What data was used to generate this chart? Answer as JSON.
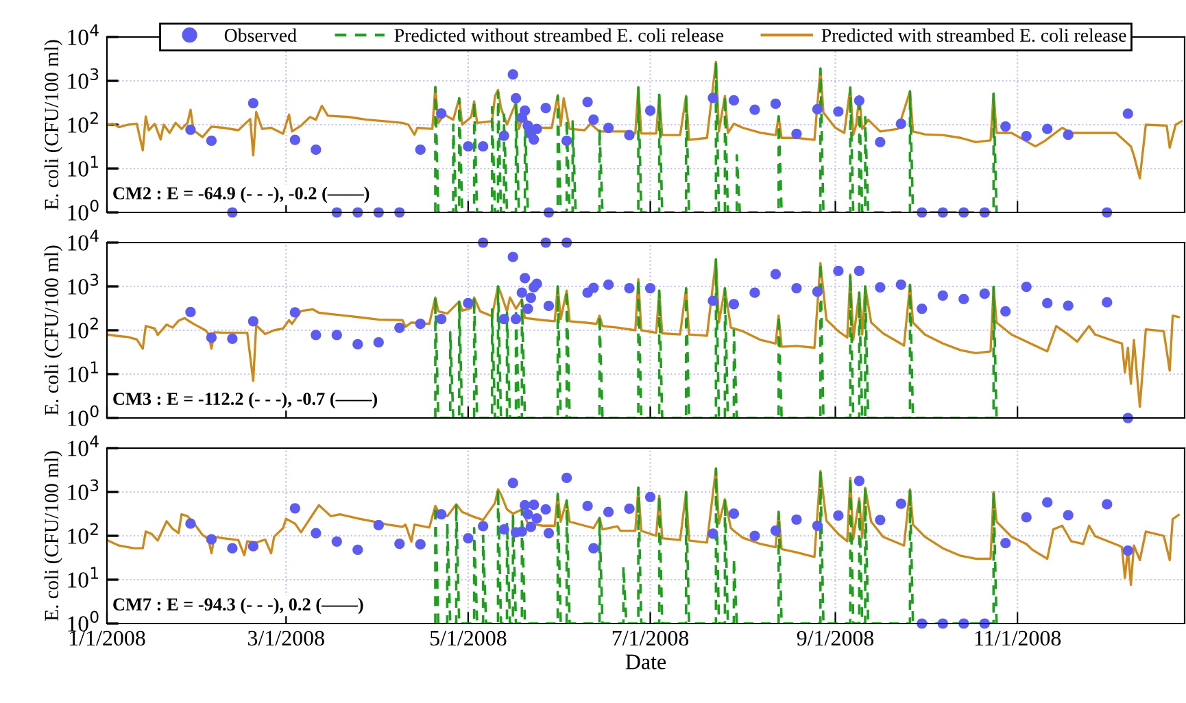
{
  "chart_data": [
    {
      "type": "line",
      "ylabel": "E. coli (CFU/100 ml)",
      "log": "y",
      "grid": true,
      "legend": "top",
      "tick_labels": "y",
      "annotations": [
        "CM2 : E = -64.9 (- - -), -0.2 (——)"
      ],
      "xlim": [
        "2008-01-01",
        "2008-12-27"
      ],
      "xticks": [
        {
          "value": "2008-01-01",
          "label": null
        },
        {
          "value": "2008-03-01",
          "label": null
        },
        {
          "value": "2008-05-01",
          "label": null
        },
        {
          "value": "2008-07-01",
          "label": null
        },
        {
          "value": "2008-09-01",
          "label": null
        },
        {
          "value": "2008-11-01",
          "label": null
        }
      ],
      "ylim": [
        1,
        10000
      ],
      "yticks": [
        {
          "value": 1,
          "label": "10$^{0}$"
        },
        {
          "value": 10,
          "label": "10$^{1}$"
        },
        {
          "value": 100,
          "label": "10$^{2}$"
        },
        {
          "value": 1000,
          "label": "10$^{3}$"
        },
        {
          "value": 10000,
          "label": "10$^{4}$"
        }
      ],
      "series": [
        {
          "name": "Predicted with streambed E. coli release",
          "line_style": "solid",
          "color": "#cc8a1c",
          "x": [
            "2008-01-01",
            "2008-01-03",
            "2008-01-05",
            "2008-01-08",
            "2008-01-11",
            "2008-01-13",
            "2008-01-14",
            "2008-01-15",
            "2008-01-17",
            "2008-01-19",
            "2008-01-20",
            "2008-01-22",
            "2008-01-24",
            "2008-01-26",
            "2008-01-28",
            "2008-01-29",
            "2008-01-30",
            "2008-02-02",
            "2008-02-05",
            "2008-02-09",
            "2008-02-14",
            "2008-02-18",
            "2008-02-19",
            "2008-02-20",
            "2008-02-22",
            "2008-02-25",
            "2008-02-29",
            "2008-03-02",
            "2008-03-03",
            "2008-03-06",
            "2008-03-09",
            "2008-03-11",
            "2008-03-13",
            "2008-03-15",
            "2008-03-22",
            "2008-03-28",
            "2008-04-03",
            "2008-04-09",
            "2008-04-11",
            "2008-04-13",
            "2008-04-14",
            "2008-04-19",
            "2008-04-20",
            "2008-04-21",
            "2008-04-23",
            "2008-04-26",
            "2008-04-28",
            "2008-04-29",
            "2008-05-02",
            "2008-05-03",
            "2008-05-04",
            "2008-05-09",
            "2008-05-10",
            "2008-05-11",
            "2008-05-12",
            "2008-05-14",
            "2008-05-17",
            "2008-05-18",
            "2008-05-19",
            "2008-05-20",
            "2008-05-21",
            "2008-05-26",
            "2008-05-29",
            "2008-05-31",
            "2008-06-01",
            "2008-06-02",
            "2008-06-04",
            "2008-06-09",
            "2008-06-11",
            "2008-06-14",
            "2008-06-23",
            "2008-06-26",
            "2008-06-27",
            "2008-06-28",
            "2008-07-03",
            "2008-07-04",
            "2008-07-05",
            "2008-07-11",
            "2008-07-13",
            "2008-07-14",
            "2008-07-20",
            "2008-07-23",
            "2008-07-24",
            "2008-07-26",
            "2008-07-27",
            "2008-07-29",
            "2008-08-01",
            "2008-08-07",
            "2008-08-12",
            "2008-08-13",
            "2008-08-14",
            "2008-08-19",
            "2008-08-25",
            "2008-08-27",
            "2008-08-28",
            "2008-09-01",
            "2008-09-04",
            "2008-09-06",
            "2008-09-07",
            "2008-09-08",
            "2008-09-09",
            "2008-09-10",
            "2008-09-12",
            "2008-09-16",
            "2008-09-22",
            "2008-09-26",
            "2008-09-27",
            "2008-10-01",
            "2008-10-07",
            "2008-10-13",
            "2008-10-18",
            "2008-10-23",
            "2008-10-24",
            "2008-10-25",
            "2008-10-30",
            "2008-11-04",
            "2008-11-07",
            "2008-11-10",
            "2008-11-16",
            "2008-11-19",
            "2008-11-25",
            "2008-12-04",
            "2008-12-09",
            "2008-12-10",
            "2008-12-12",
            "2008-12-14",
            "2008-12-21",
            "2008-12-22",
            "2008-12-24",
            "2008-12-26"
          ],
          "values": [
            100,
            105,
            88,
            100,
            105,
            26,
            155,
            75,
            105,
            46,
            100,
            65,
            110,
            80,
            110,
            220,
            75,
            52,
            90,
            85,
            75,
            135,
            20,
            195,
            80,
            85,
            62,
            170,
            70,
            95,
            150,
            130,
            270,
            160,
            150,
            130,
            120,
            110,
            100,
            59,
            85,
            80,
            720,
            110,
            170,
            130,
            400,
            100,
            150,
            340,
            110,
            120,
            450,
            620,
            240,
            100,
            320,
            80,
            130,
            200,
            90,
            85,
            85,
            470,
            95,
            400,
            80,
            75,
            105,
            70,
            70,
            63,
            720,
            63,
            63,
            480,
            58,
            58,
            455,
            45,
            50,
            2700,
            70,
            450,
            65,
            105,
            85,
            65,
            58,
            155,
            50,
            50,
            45,
            1900,
            190,
            85,
            65,
            700,
            58,
            100,
            455,
            80,
            130,
            70,
            80,
            575,
            70,
            60,
            58,
            50,
            40,
            44,
            510,
            65,
            65,
            42,
            32,
            42,
            85,
            65,
            65,
            65,
            32,
            20,
            6,
            100,
            95,
            30,
            100,
            120
          ]
        },
        {
          "name": "Predicted without streambed E. coli release",
          "line_style": "dashed",
          "color": "#1f9e1f",
          "x": [
            "2008-04-20",
            "2008-04-20",
            "2008-04-21",
            "2008-04-26",
            "2008-04-26",
            "2008-04-27",
            "2008-04-28",
            "2008-04-28",
            "2008-04-29",
            "2008-05-03",
            "2008-05-03",
            "2008-05-04",
            "2008-05-09",
            "2008-05-09",
            "2008-05-10",
            "2008-05-11",
            "2008-05-11",
            "2008-05-12",
            "2008-05-13",
            "2008-05-13",
            "2008-05-14",
            "2008-05-17",
            "2008-05-17",
            "2008-05-18",
            "2008-05-20",
            "2008-05-20",
            "2008-05-21",
            "2008-05-31",
            "2008-05-31",
            "2008-06-01",
            "2008-06-03",
            "2008-06-03",
            "2008-06-04",
            "2008-06-05",
            "2008-06-05",
            "2008-06-06",
            "2008-06-14",
            "2008-06-14",
            "2008-06-15",
            "2008-06-27",
            "2008-06-27",
            "2008-06-28",
            "2008-07-04",
            "2008-07-04",
            "2008-07-05",
            "2008-07-13",
            "2008-07-13",
            "2008-07-14",
            "2008-07-23",
            "2008-07-23",
            "2008-07-24",
            "2008-07-26",
            "2008-07-26",
            "2008-07-27",
            "2008-07-30",
            "2008-07-30",
            "2008-07-31",
            "2008-08-13",
            "2008-08-13",
            "2008-08-14",
            "2008-08-27",
            "2008-08-27",
            "2008-08-28",
            "2008-09-06",
            "2008-09-06",
            "2008-09-07",
            "2008-09-09",
            "2008-09-09",
            "2008-09-10",
            "2008-09-11",
            "2008-09-11",
            "2008-09-12",
            "2008-09-26",
            "2008-09-26",
            "2008-09-27",
            "2008-10-24",
            "2008-10-24",
            "2008-10-25"
          ],
          "values": [
            1,
            720,
            1,
            1,
            100,
            1,
            1,
            400,
            1,
            1,
            330,
            1,
            1,
            250,
            1,
            1,
            550,
            1,
            1,
            170,
            1,
            1,
            300,
            1,
            1,
            200,
            1,
            1,
            450,
            1,
            1,
            130,
            1,
            1,
            120,
            1,
            1,
            80,
            1,
            1,
            700,
            1,
            1,
            480,
            1,
            1,
            455,
            1,
            1,
            2700,
            1,
            1,
            450,
            1,
            1,
            20,
            1,
            1,
            155,
            1,
            1,
            1900,
            1,
            1,
            700,
            1,
            1,
            455,
            1,
            1,
            150,
            1,
            1,
            575,
            1,
            1,
            510,
            1
          ]
        },
        {
          "name": "Observed",
          "type": "scatter",
          "marker": "circle",
          "color": "#5c5cf2",
          "x": [
            "2008-01-29",
            "2008-02-05",
            "2008-02-12",
            "2008-02-19",
            "2008-03-04",
            "2008-03-11",
            "2008-03-18",
            "2008-03-25",
            "2008-04-01",
            "2008-04-08",
            "2008-04-15",
            "2008-04-22",
            "2008-05-01",
            "2008-05-06",
            "2008-05-13",
            "2008-05-16",
            "2008-05-17",
            "2008-05-19",
            "2008-05-20",
            "2008-05-21",
            "2008-05-22",
            "2008-05-23",
            "2008-05-24",
            "2008-05-27",
            "2008-05-28",
            "2008-06-03",
            "2008-06-10",
            "2008-06-12",
            "2008-06-17",
            "2008-06-24",
            "2008-07-01",
            "2008-07-22",
            "2008-07-29",
            "2008-08-05",
            "2008-08-12",
            "2008-08-19",
            "2008-08-26",
            "2008-09-02",
            "2008-09-09",
            "2008-09-16",
            "2008-09-23",
            "2008-09-30",
            "2008-10-07",
            "2008-10-14",
            "2008-10-21",
            "2008-10-28",
            "2008-11-04",
            "2008-11-11",
            "2008-11-18",
            "2008-12-01",
            "2008-12-08"
          ],
          "values": [
            77,
            43,
            1,
            310,
            45,
            27,
            1,
            1,
            1,
            1,
            27,
            180,
            32,
            32,
            56,
            1400,
            400,
            145,
            210,
            95,
            62,
            46,
            80,
            240,
            1,
            43,
            330,
            130,
            85,
            58,
            210,
            410,
            360,
            220,
            300,
            62,
            225,
            200,
            355,
            40,
            105,
            1,
            1,
            1,
            1,
            91,
            55,
            80,
            59,
            1,
            178
          ]
        }
      ]
    },
    {
      "type": "line",
      "ylabel": "E. coli (CFU/100 ml)",
      "log": "y",
      "grid": true,
      "tick_labels": "y",
      "annotations": [
        "CM3 : E = -112.2 (- - -), -0.7 (——)"
      ],
      "xlim": [
        "2008-01-01",
        "2008-12-27"
      ],
      "xticks": [
        {
          "value": "2008-01-01",
          "label": null
        },
        {
          "value": "2008-03-01",
          "label": null
        },
        {
          "value": "2008-05-01",
          "label": null
        },
        {
          "value": "2008-07-01",
          "label": null
        },
        {
          "value": "2008-09-01",
          "label": null
        },
        {
          "value": "2008-11-01",
          "label": null
        }
      ],
      "ylim": [
        1,
        10000
      ],
      "yticks": [
        {
          "value": 1,
          "label": "10$^{0}$"
        },
        {
          "value": 10,
          "label": "10$^{1}$"
        },
        {
          "value": 100,
          "label": "10$^{2}$"
        },
        {
          "value": 1000,
          "label": "10$^{3}$"
        },
        {
          "value": 10000,
          "label": "10$^{4}$"
        }
      ],
      "series": [
        {
          "line_style": "solid",
          "color": "#cc8a1c",
          "x": [
            "2008-01-01",
            "2008-01-04",
            "2008-01-08",
            "2008-01-11",
            "2008-01-13",
            "2008-01-14",
            "2008-01-17",
            "2008-01-18",
            "2008-01-21",
            "2008-01-23",
            "2008-01-25",
            "2008-01-27",
            "2008-01-28",
            "2008-01-30",
            "2008-02-03",
            "2008-02-04",
            "2008-02-05",
            "2008-02-06",
            "2008-02-09",
            "2008-02-14",
            "2008-02-17",
            "2008-02-19",
            "2008-02-20",
            "2008-02-23",
            "2008-02-26",
            "2008-02-29",
            "2008-03-02",
            "2008-03-03",
            "2008-03-06",
            "2008-03-10",
            "2008-03-12",
            "2008-03-17",
            "2008-03-25",
            "2008-04-01",
            "2008-04-09",
            "2008-04-10",
            "2008-04-12",
            "2008-04-18",
            "2008-04-20",
            "2008-04-21",
            "2008-04-24",
            "2008-04-28",
            "2008-04-29",
            "2008-05-02",
            "2008-05-03",
            "2008-05-05",
            "2008-05-09",
            "2008-05-11",
            "2008-05-12",
            "2008-05-14",
            "2008-05-15",
            "2008-05-17",
            "2008-05-19",
            "2008-05-20",
            "2008-05-26",
            "2008-05-30",
            "2008-05-31",
            "2008-06-01",
            "2008-06-03",
            "2008-06-04",
            "2008-06-09",
            "2008-06-13",
            "2008-06-14",
            "2008-06-15",
            "2008-06-20",
            "2008-06-26",
            "2008-06-27",
            "2008-06-28",
            "2008-07-03",
            "2008-07-04",
            "2008-07-05",
            "2008-07-11",
            "2008-07-13",
            "2008-07-14",
            "2008-07-20",
            "2008-07-23",
            "2008-07-24",
            "2008-07-26",
            "2008-07-28",
            "2008-07-29",
            "2008-08-01",
            "2008-08-07",
            "2008-08-12",
            "2008-08-13",
            "2008-08-14",
            "2008-08-19",
            "2008-08-25",
            "2008-08-27",
            "2008-08-29",
            "2008-09-02",
            "2008-09-05",
            "2008-09-06",
            "2008-09-07",
            "2008-09-09",
            "2008-09-10",
            "2008-09-11",
            "2008-09-13",
            "2008-09-17",
            "2008-09-24",
            "2008-09-26",
            "2008-09-27",
            "2008-10-01",
            "2008-10-07",
            "2008-10-13",
            "2008-10-18",
            "2008-10-23",
            "2008-10-24",
            "2008-10-25",
            "2008-10-30",
            "2008-11-04",
            "2008-11-11",
            "2008-11-14",
            "2008-11-18",
            "2008-11-21",
            "2008-11-25",
            "2008-11-27",
            "2008-12-04",
            "2008-12-06",
            "2008-12-07",
            "2008-12-08",
            "2008-12-09",
            "2008-12-10",
            "2008-12-12",
            "2008-12-14",
            "2008-12-20",
            "2008-12-22",
            "2008-12-23",
            "2008-12-25"
          ],
          "values": [
            80,
            75,
            70,
            62,
            38,
            125,
            110,
            78,
            135,
            115,
            165,
            190,
            170,
            140,
            100,
            83,
            38,
            90,
            88,
            88,
            88,
            7,
            130,
            82,
            100,
            110,
            170,
            140,
            275,
            300,
            250,
            230,
            200,
            175,
            170,
            120,
            150,
            140,
            560,
            270,
            240,
            450,
            280,
            320,
            560,
            270,
            210,
            1000,
            680,
            270,
            560,
            310,
            500,
            190,
            170,
            160,
            1000,
            180,
            800,
            160,
            150,
            140,
            215,
            125,
            115,
            100,
            1460,
            100,
            88,
            800,
            85,
            80,
            900,
            80,
            75,
            4100,
            150,
            900,
            115,
            110,
            95,
            60,
            50,
            215,
            42,
            44,
            40,
            3400,
            175,
            95,
            68,
            1870,
            60,
            720,
            80,
            1000,
            150,
            85,
            45,
            1080,
            150,
            80,
            50,
            35,
            30,
            33,
            980,
            150,
            80,
            55,
            33,
            125,
            80,
            55,
            125,
            80,
            55,
            50,
            11,
            40,
            6,
            60,
            1.8,
            105,
            95,
            12,
            215,
            200
          ]
        },
        {
          "line_style": "dashed",
          "color": "#1f9e1f",
          "x": [
            "2008-04-20",
            "2008-04-20",
            "2008-04-21",
            "2008-04-25",
            "2008-04-25",
            "2008-04-26",
            "2008-04-28",
            "2008-04-28",
            "2008-04-29",
            "2008-05-03",
            "2008-05-03",
            "2008-05-04",
            "2008-05-09",
            "2008-05-09",
            "2008-05-10",
            "2008-05-11",
            "2008-05-11",
            "2008-05-12",
            "2008-05-14",
            "2008-05-14",
            "2008-05-15",
            "2008-05-17",
            "2008-05-17",
            "2008-05-18",
            "2008-05-19",
            "2008-05-19",
            "2008-05-20",
            "2008-05-31",
            "2008-05-31",
            "2008-06-01",
            "2008-06-03",
            "2008-06-03",
            "2008-06-04",
            "2008-06-14",
            "2008-06-14",
            "2008-06-15",
            "2008-06-27",
            "2008-06-27",
            "2008-06-28",
            "2008-07-04",
            "2008-07-04",
            "2008-07-05",
            "2008-07-13",
            "2008-07-13",
            "2008-07-14",
            "2008-07-23",
            "2008-07-23",
            "2008-07-24",
            "2008-07-26",
            "2008-07-26",
            "2008-07-27",
            "2008-07-29",
            "2008-07-29",
            "2008-07-30",
            "2008-08-13",
            "2008-08-13",
            "2008-08-14",
            "2008-08-27",
            "2008-08-27",
            "2008-08-28",
            "2008-09-06",
            "2008-09-06",
            "2008-09-07",
            "2008-09-09",
            "2008-09-09",
            "2008-09-10",
            "2008-09-11",
            "2008-09-11",
            "2008-09-12",
            "2008-09-26",
            "2008-09-26",
            "2008-09-27",
            "2008-10-24",
            "2008-10-24",
            "2008-10-25"
          ],
          "values": [
            1,
            560,
            1,
            1,
            90,
            1,
            1,
            450,
            1,
            1,
            560,
            1,
            1,
            300,
            1,
            1,
            1000,
            1,
            1,
            250,
            1,
            1,
            310,
            1,
            1,
            500,
            1,
            1,
            1000,
            1,
            1,
            800,
            1,
            1,
            215,
            1,
            1,
            1460,
            1,
            1,
            800,
            1,
            1,
            900,
            1,
            1,
            4100,
            1,
            1,
            900,
            1,
            1,
            100,
            1,
            1,
            215,
            1,
            1,
            3400,
            1,
            1,
            1870,
            1,
            1,
            720,
            1,
            1,
            1000,
            1,
            1,
            1080,
            1,
            1,
            980,
            1
          ]
        },
        {
          "type": "scatter",
          "marker": "circle",
          "color": "#5c5cf2",
          "x": [
            "2008-01-29",
            "2008-02-05",
            "2008-02-12",
            "2008-02-19",
            "2008-03-04",
            "2008-03-11",
            "2008-03-18",
            "2008-03-25",
            "2008-04-01",
            "2008-04-08",
            "2008-04-15",
            "2008-04-22",
            "2008-05-01",
            "2008-05-06",
            "2008-05-13",
            "2008-05-16",
            "2008-05-17",
            "2008-05-19",
            "2008-05-20",
            "2008-05-21",
            "2008-05-22",
            "2008-05-23",
            "2008-05-24",
            "2008-05-27",
            "2008-05-28",
            "2008-06-03",
            "2008-06-10",
            "2008-06-12",
            "2008-06-17",
            "2008-06-24",
            "2008-07-01",
            "2008-07-22",
            "2008-07-29",
            "2008-08-05",
            "2008-08-12",
            "2008-08-19",
            "2008-08-26",
            "2008-09-02",
            "2008-09-09",
            "2008-09-16",
            "2008-09-23",
            "2008-09-30",
            "2008-10-07",
            "2008-10-14",
            "2008-10-21",
            "2008-10-28",
            "2008-11-04",
            "2008-11-11",
            "2008-11-18",
            "2008-12-01",
            "2008-12-08"
          ],
          "values": [
            260,
            68,
            64,
            160,
            255,
            78,
            78,
            48,
            53,
            114,
            140,
            180,
            415,
            10000,
            180,
            4700,
            180,
            720,
            1550,
            310,
            550,
            960,
            1150,
            10000,
            360,
            10000,
            720,
            930,
            1100,
            910,
            910,
            470,
            395,
            720,
            1900,
            910,
            760,
            2250,
            2250,
            955,
            1100,
            310,
            620,
            515,
            680,
            270,
            980,
            415,
            365,
            435,
            1
          ]
        }
      ]
    },
    {
      "type": "line",
      "ylabel": "E. coli (CFU/100 ml)",
      "xlabel": "Date",
      "log": "y",
      "grid": true,
      "annotations": [
        "CM7 : E = -94.3 (- - -), 0.2 (——)"
      ],
      "xlim": [
        "2008-01-01",
        "2008-12-27"
      ],
      "xticks": [
        {
          "value": "2008-01-01",
          "label": "1/1/2008"
        },
        {
          "value": "2008-03-01",
          "label": "3/1/2008"
        },
        {
          "value": "2008-05-01",
          "label": "5/1/2008"
        },
        {
          "value": "2008-07-01",
          "label": "7/1/2008"
        },
        {
          "value": "2008-09-01",
          "label": "9/1/2008"
        },
        {
          "value": "2008-11-01",
          "label": "11/1/2008"
        }
      ],
      "ylim": [
        1,
        10000
      ],
      "yticks": [
        {
          "value": 1,
          "label": "10$^{0}$"
        },
        {
          "value": 10,
          "label": "10$^{1}$"
        },
        {
          "value": 100,
          "label": "10$^{2}$"
        },
        {
          "value": 1000,
          "label": "10$^{3}$"
        },
        {
          "value": 10000,
          "label": "10$^{4}$"
        }
      ],
      "series": [
        {
          "line_style": "solid",
          "color": "#cc8a1c",
          "x": [
            "2008-01-01",
            "2008-01-05",
            "2008-01-10",
            "2008-01-13",
            "2008-01-14",
            "2008-01-16",
            "2008-01-18",
            "2008-01-21",
            "2008-01-23",
            "2008-01-25",
            "2008-01-26",
            "2008-01-28",
            "2008-01-30",
            "2008-02-02",
            "2008-02-04",
            "2008-02-05",
            "2008-02-06",
            "2008-02-09",
            "2008-02-14",
            "2008-02-16",
            "2008-02-17",
            "2008-02-20",
            "2008-02-23",
            "2008-02-25",
            "2008-02-26",
            "2008-02-29",
            "2008-03-01",
            "2008-03-04",
            "2008-03-06",
            "2008-03-12",
            "2008-03-16",
            "2008-03-19",
            "2008-03-25",
            "2008-04-01",
            "2008-04-04",
            "2008-04-09",
            "2008-04-10",
            "2008-04-12",
            "2008-04-13",
            "2008-04-18",
            "2008-04-20",
            "2008-04-21",
            "2008-04-24",
            "2008-04-27",
            "2008-04-29",
            "2008-05-03",
            "2008-05-06",
            "2008-05-10",
            "2008-05-11",
            "2008-05-12",
            "2008-05-14",
            "2008-05-16",
            "2008-05-19",
            "2008-05-21",
            "2008-05-26",
            "2008-05-30",
            "2008-05-31",
            "2008-06-01",
            "2008-06-03",
            "2008-06-04",
            "2008-06-09",
            "2008-06-12",
            "2008-06-14",
            "2008-06-15",
            "2008-06-20",
            "2008-06-21",
            "2008-06-26",
            "2008-06-27",
            "2008-06-28",
            "2008-07-03",
            "2008-07-04",
            "2008-07-05",
            "2008-07-11",
            "2008-07-13",
            "2008-07-14",
            "2008-07-20",
            "2008-07-23",
            "2008-07-24",
            "2008-07-26",
            "2008-07-28",
            "2008-07-29",
            "2008-08-01",
            "2008-08-07",
            "2008-08-12",
            "2008-08-13",
            "2008-08-14",
            "2008-08-19",
            "2008-08-25",
            "2008-08-27",
            "2008-08-29",
            "2008-09-02",
            "2008-09-05",
            "2008-09-06",
            "2008-09-07",
            "2008-09-09",
            "2008-09-10",
            "2008-09-11",
            "2008-09-13",
            "2008-09-17",
            "2008-09-24",
            "2008-09-26",
            "2008-09-27",
            "2008-10-01",
            "2008-10-07",
            "2008-10-13",
            "2008-10-18",
            "2008-10-23",
            "2008-10-24",
            "2008-10-25",
            "2008-10-30",
            "2008-11-04",
            "2008-11-06",
            "2008-11-11",
            "2008-11-13",
            "2008-11-16",
            "2008-11-19",
            "2008-11-23",
            "2008-11-25",
            "2008-11-27",
            "2008-12-05",
            "2008-12-06",
            "2008-12-07",
            "2008-12-08",
            "2008-12-09",
            "2008-12-10",
            "2008-12-12",
            "2008-12-14",
            "2008-12-20",
            "2008-12-22",
            "2008-12-23",
            "2008-12-25"
          ],
          "values": [
            80,
            60,
            52,
            52,
            125,
            110,
            78,
            215,
            145,
            115,
            310,
            280,
            200,
            105,
            85,
            40,
            95,
            88,
            80,
            36,
            75,
            70,
            82,
            40,
            95,
            150,
            245,
            190,
            120,
            500,
            280,
            310,
            250,
            200,
            180,
            160,
            180,
            74,
            180,
            155,
            480,
            360,
            280,
            525,
            350,
            270,
            230,
            560,
            1150,
            880,
            400,
            320,
            400,
            190,
            170,
            170,
            900,
            210,
            640,
            210,
            170,
            150,
            255,
            140,
            165,
            130,
            130,
            1250,
            130,
            100,
            820,
            88,
            80,
            1000,
            78,
            70,
            3400,
            190,
            680,
            150,
            130,
            90,
            65,
            55,
            350,
            50,
            42,
            33,
            3000,
            220,
            110,
            75,
            2100,
            83,
            720,
            90,
            1250,
            210,
            95,
            60,
            1150,
            180,
            95,
            52,
            35,
            30,
            30,
            1000,
            210,
            95,
            65,
            48,
            30,
            140,
            170,
            75,
            65,
            170,
            98,
            60,
            55,
            11,
            50,
            7.6,
            60,
            28,
            125,
            100,
            28,
            240,
            300
          ]
        },
        {
          "line_style": "dashed",
          "color": "#1f9e1f",
          "x": [
            "2008-04-20",
            "2008-04-20",
            "2008-04-21",
            "2008-04-24",
            "2008-04-24",
            "2008-04-25",
            "2008-04-27",
            "2008-04-27",
            "2008-04-28",
            "2008-05-03",
            "2008-05-03",
            "2008-05-04",
            "2008-05-06",
            "2008-05-06",
            "2008-05-07",
            "2008-05-11",
            "2008-05-11",
            "2008-05-12",
            "2008-05-14",
            "2008-05-14",
            "2008-05-15",
            "2008-05-16",
            "2008-05-16",
            "2008-05-17",
            "2008-05-19",
            "2008-05-19",
            "2008-05-20",
            "2008-05-31",
            "2008-05-31",
            "2008-06-01",
            "2008-06-03",
            "2008-06-03",
            "2008-06-04",
            "2008-06-14",
            "2008-06-14",
            "2008-06-15",
            "2008-06-22",
            "2008-06-22",
            "2008-06-23",
            "2008-06-27",
            "2008-06-27",
            "2008-06-28",
            "2008-07-04",
            "2008-07-04",
            "2008-07-05",
            "2008-07-13",
            "2008-07-13",
            "2008-07-14",
            "2008-07-23",
            "2008-07-23",
            "2008-07-24",
            "2008-07-26",
            "2008-07-26",
            "2008-07-27",
            "2008-07-29",
            "2008-07-29",
            "2008-07-30",
            "2008-08-13",
            "2008-08-13",
            "2008-08-14",
            "2008-08-27",
            "2008-08-27",
            "2008-08-28",
            "2008-09-06",
            "2008-09-06",
            "2008-09-07",
            "2008-09-09",
            "2008-09-09",
            "2008-09-10",
            "2008-09-11",
            "2008-09-11",
            "2008-09-12",
            "2008-09-26",
            "2008-09-26",
            "2008-09-27",
            "2008-10-24",
            "2008-10-24",
            "2008-10-25"
          ],
          "values": [
            1,
            480,
            1,
            1,
            200,
            1,
            1,
            525,
            1,
            1,
            150,
            1,
            1,
            100,
            1,
            1,
            1150,
            1,
            1,
            200,
            1,
            1,
            320,
            1,
            1,
            400,
            1,
            1,
            900,
            1,
            1,
            640,
            1,
            1,
            255,
            1,
            1,
            20,
            1,
            1,
            1250,
            1,
            1,
            820,
            1,
            1,
            1000,
            1,
            1,
            3400,
            1,
            1,
            680,
            1,
            1,
            30,
            1,
            1,
            350,
            1,
            1,
            3000,
            1,
            1,
            2100,
            1,
            1,
            720,
            1,
            1,
            1250,
            1,
            1,
            1150,
            1,
            1,
            1000,
            1
          ]
        },
        {
          "type": "scatter",
          "marker": "circle",
          "color": "#5c5cf2",
          "x": [
            "2008-01-29",
            "2008-02-05",
            "2008-02-12",
            "2008-02-19",
            "2008-03-04",
            "2008-03-11",
            "2008-03-18",
            "2008-03-25",
            "2008-04-01",
            "2008-04-08",
            "2008-04-15",
            "2008-04-22",
            "2008-05-01",
            "2008-05-06",
            "2008-05-13",
            "2008-05-16",
            "2008-05-17",
            "2008-05-19",
            "2008-05-20",
            "2008-05-21",
            "2008-05-22",
            "2008-05-23",
            "2008-05-24",
            "2008-05-27",
            "2008-05-28",
            "2008-06-03",
            "2008-06-10",
            "2008-06-12",
            "2008-06-17",
            "2008-06-24",
            "2008-07-01",
            "2008-07-22",
            "2008-07-29",
            "2008-08-05",
            "2008-08-12",
            "2008-08-19",
            "2008-08-26",
            "2008-09-02",
            "2008-09-09",
            "2008-09-16",
            "2008-09-23",
            "2008-09-30",
            "2008-10-07",
            "2008-10-14",
            "2008-10-21",
            "2008-10-28",
            "2008-11-04",
            "2008-11-11",
            "2008-11-18",
            "2008-12-01",
            "2008-12-08"
          ],
          "values": [
            190,
            83,
            52,
            58,
            425,
            115,
            74,
            48,
            175,
            66,
            64,
            310,
            88,
            166,
            140,
            1600,
            120,
            125,
            500,
            310,
            160,
            510,
            250,
            400,
            115,
            2100,
            480,
            52,
            350,
            415,
            770,
            112,
            320,
            100,
            132,
            235,
            170,
            290,
            1780,
            230,
            540,
            1,
            1,
            1,
            1,
            68,
            265,
            580,
            295,
            525,
            46
          ]
        }
      ]
    }
  ]
}
